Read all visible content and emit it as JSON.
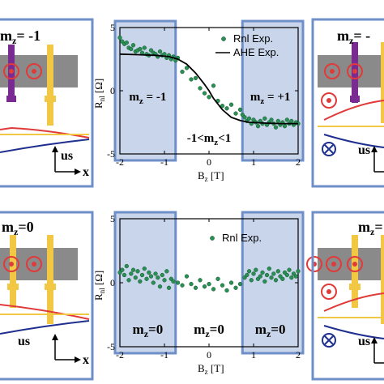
{
  "colors": {
    "panel_fill": "#c9d5ea",
    "panel_border": "#6f8fc9",
    "dots": "#2a8f54",
    "dots_edge": "#16592f",
    "fit_line": "#000000",
    "stripe": "#8a8a8a",
    "red": "#e03a3a",
    "yellow": "#f2c744",
    "purple": "#7a2b91",
    "navy": "#1f2f8f"
  },
  "top_schematic_left": {
    "label": "m",
    "sub": "z",
    "value": "= -1",
    "axis_y": "us",
    "axis_x": "x"
  },
  "top_schematic_right": {
    "label": "m",
    "sub": "z",
    "value": "= -",
    "axis_y": "us"
  },
  "bottom_schematic_left": {
    "label": "m",
    "sub": "z",
    "value": "=0",
    "axis_y": "us",
    "axis_x": "x"
  },
  "bottom_schematic_right": {
    "label": "m",
    "sub": "z",
    "value": "=",
    "axis_y": "us"
  },
  "chart_data": [
    {
      "type": "scatter",
      "name": "top",
      "xlabel_main": "B",
      "xlabel_sub": "z",
      "xlabel_unit": "[T]",
      "ylabel_main": "R",
      "ylabel_sub": "nl",
      "ylabel_unit": "[Ω]",
      "xlim": [
        -2,
        2
      ],
      "ylim": [
        -5,
        5
      ],
      "xticks": [
        "-2",
        "-1",
        "0",
        "1",
        "2"
      ],
      "yticks": [
        "-5",
        "0",
        "5"
      ],
      "legend": [
        {
          "kind": "dot",
          "label": "Rnl Exp."
        },
        {
          "kind": "line",
          "label": "AHE Exp."
        }
      ],
      "legend_position": "top-right",
      "regions": [
        {
          "label": "m",
          "sub": "z",
          "text": " = -1",
          "x_range": [
            -2,
            -0.75
          ]
        },
        {
          "label": "-1<m",
          "sub": "z",
          "text": "<1",
          "x_range": [
            -0.75,
            0.75
          ]
        },
        {
          "label": "m",
          "sub": "z",
          "text": " = +1",
          "x_range": [
            0.75,
            2
          ]
        }
      ],
      "series": [
        {
          "kind": "scatter",
          "x": [
            -2.0,
            -1.95,
            -1.9,
            -1.85,
            -1.8,
            -1.75,
            -1.7,
            -1.65,
            -1.6,
            -1.55,
            -1.5,
            -1.45,
            -1.4,
            -1.35,
            -1.3,
            -1.25,
            -1.2,
            -1.15,
            -1.1,
            -1.05,
            -1.0,
            -0.95,
            -0.9,
            -0.85,
            -0.8,
            -0.75,
            -0.7,
            -0.6,
            -0.5,
            -0.4,
            -0.3,
            -0.2,
            -0.1,
            0.0,
            0.1,
            0.2,
            0.3,
            0.4,
            0.5,
            0.6,
            0.7,
            0.75,
            0.8,
            0.85,
            0.9,
            0.95,
            1.0,
            1.05,
            1.1,
            1.15,
            1.2,
            1.25,
            1.3,
            1.35,
            1.4,
            1.45,
            1.5,
            1.55,
            1.6,
            1.65,
            1.7,
            1.75,
            1.8,
            1.85,
            1.9,
            1.95,
            2.0
          ],
          "y": [
            4.2,
            3.9,
            3.7,
            3.8,
            3.4,
            3.3,
            3.6,
            3.1,
            3.2,
            3.3,
            3.0,
            3.4,
            2.9,
            2.8,
            3.2,
            3.0,
            2.9,
            2.7,
            3.1,
            2.8,
            2.9,
            2.6,
            2.8,
            2.5,
            2.7,
            2.4,
            2.6,
            1.5,
            1.8,
            0.9,
            1.0,
            0.2,
            -0.2,
            -0.5,
            0.4,
            -0.8,
            -1.2,
            -1.4,
            -1.1,
            -1.8,
            -1.5,
            -1.9,
            -2.1,
            -2.4,
            -2.2,
            -2.6,
            -2.3,
            -2.5,
            -2.8,
            -2.4,
            -2.6,
            -2.2,
            -2.7,
            -2.5,
            -2.3,
            -2.6,
            -2.9,
            -2.4,
            -2.7,
            -2.5,
            -2.8,
            -2.3,
            -2.6,
            -2.4,
            -2.7,
            -2.5,
            -2.6
          ]
        },
        {
          "kind": "line",
          "x": [
            -2.0,
            -1.6,
            -1.2,
            -0.9,
            -0.7,
            -0.5,
            -0.3,
            -0.1,
            0.0,
            0.1,
            0.3,
            0.5,
            0.7,
            0.9,
            1.2,
            1.6,
            2.0
          ],
          "y": [
            2.9,
            2.85,
            2.8,
            2.7,
            2.5,
            2.1,
            1.4,
            0.5,
            0.0,
            -0.6,
            -1.5,
            -2.1,
            -2.35,
            -2.5,
            -2.55,
            -2.6,
            -2.6
          ]
        }
      ]
    },
    {
      "type": "scatter",
      "name": "bottom",
      "xlabel_main": "B",
      "xlabel_sub": "z",
      "xlabel_unit": "[T]",
      "ylabel_main": "R",
      "ylabel_sub": "nl",
      "ylabel_unit": "[Ω]",
      "xlim": [
        -2,
        2
      ],
      "ylim": [
        -5,
        5
      ],
      "xticks": [
        "-2",
        "-1",
        "0",
        "1",
        "2"
      ],
      "yticks": [
        "-5",
        "0",
        "5"
      ],
      "legend": [
        {
          "kind": "dot",
          "label": "Rnl Exp."
        }
      ],
      "legend_position": "top-center",
      "regions": [
        {
          "label": "m",
          "sub": "z",
          "text": "=0",
          "x_range": [
            -2,
            -0.75
          ]
        },
        {
          "label": "m",
          "sub": "z",
          "text": "=0",
          "x_range": [
            -0.75,
            0.75
          ]
        },
        {
          "label": "m",
          "sub": "z",
          "text": "=0",
          "x_range": [
            0.75,
            2
          ]
        }
      ],
      "series": [
        {
          "kind": "scatter",
          "x": [
            -2.0,
            -1.95,
            -1.9,
            -1.85,
            -1.8,
            -1.75,
            -1.7,
            -1.65,
            -1.6,
            -1.55,
            -1.5,
            -1.45,
            -1.4,
            -1.35,
            -1.3,
            -1.25,
            -1.2,
            -1.15,
            -1.1,
            -1.05,
            -1.0,
            -0.95,
            -0.9,
            -0.85,
            -0.8,
            -0.7,
            -0.6,
            -0.5,
            -0.4,
            -0.3,
            -0.2,
            -0.1,
            0.0,
            0.1,
            0.2,
            0.3,
            0.4,
            0.5,
            0.6,
            0.7,
            0.8,
            0.85,
            0.9,
            0.95,
            1.0,
            1.05,
            1.1,
            1.15,
            1.2,
            1.25,
            1.3,
            1.35,
            1.4,
            1.45,
            1.5,
            1.55,
            1.6,
            1.65,
            1.7,
            1.75,
            1.8,
            1.85,
            1.9,
            1.95,
            2.0
          ],
          "y": [
            0.8,
            1.0,
            0.6,
            1.3,
            0.2,
            0.7,
            1.0,
            0.4,
            0.9,
            0.1,
            0.6,
            1.1,
            0.3,
            0.8,
            0.5,
            0.0,
            0.7,
            0.4,
            -0.3,
            0.6,
            0.2,
            0.9,
            -0.4,
            0.3,
            0.1,
            0.0,
            -0.2,
            0.5,
            -0.1,
            -0.4,
            0.2,
            -0.3,
            -0.1,
            -0.5,
            0.3,
            -0.2,
            -0.6,
            0.0,
            -0.4,
            -0.1,
            0.4,
            0.6,
            0.9,
            0.2,
            0.7,
            1.0,
            0.3,
            0.5,
            0.8,
            0.1,
            0.6,
            1.1,
            0.4,
            0.7,
            0.2,
            0.9,
            0.5,
            0.3,
            0.8,
            0.6,
            1.0,
            0.4,
            0.7,
            0.5,
            0.9
          ]
        }
      ]
    }
  ]
}
